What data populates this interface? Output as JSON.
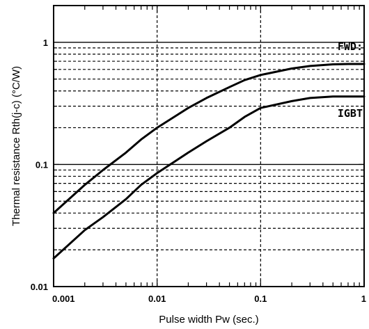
{
  "chart_data": {
    "type": "line",
    "title": "",
    "xlabel": "Pulse width  Pw (sec.)",
    "ylabel": "Thermal resistance  Rth(j-c) (°C/W)",
    "x_scale": "log",
    "y_scale": "log",
    "xlim": [
      0.001,
      1
    ],
    "ylim": [
      0.01,
      2
    ],
    "x_ticks": [
      "0.001",
      "0.01",
      "0.1",
      "1"
    ],
    "y_ticks": [
      "0.01",
      "0.1",
      "1"
    ],
    "grid": true,
    "series": [
      {
        "name": "FWD",
        "x": [
          0.001,
          0.002,
          0.003,
          0.005,
          0.007,
          0.01,
          0.02,
          0.03,
          0.05,
          0.07,
          0.1,
          0.2,
          0.3,
          0.5,
          0.7,
          1
        ],
        "y": [
          0.04,
          0.068,
          0.09,
          0.125,
          0.16,
          0.2,
          0.29,
          0.35,
          0.43,
          0.49,
          0.54,
          0.61,
          0.64,
          0.66,
          0.665,
          0.665
        ]
      },
      {
        "name": "IGBT",
        "x": [
          0.001,
          0.002,
          0.003,
          0.005,
          0.007,
          0.01,
          0.02,
          0.03,
          0.05,
          0.07,
          0.1,
          0.2,
          0.3,
          0.5,
          0.7,
          1
        ],
        "y": [
          0.017,
          0.029,
          0.037,
          0.052,
          0.068,
          0.085,
          0.125,
          0.155,
          0.2,
          0.245,
          0.29,
          0.33,
          0.35,
          0.36,
          0.36,
          0.36
        ]
      }
    ]
  }
}
